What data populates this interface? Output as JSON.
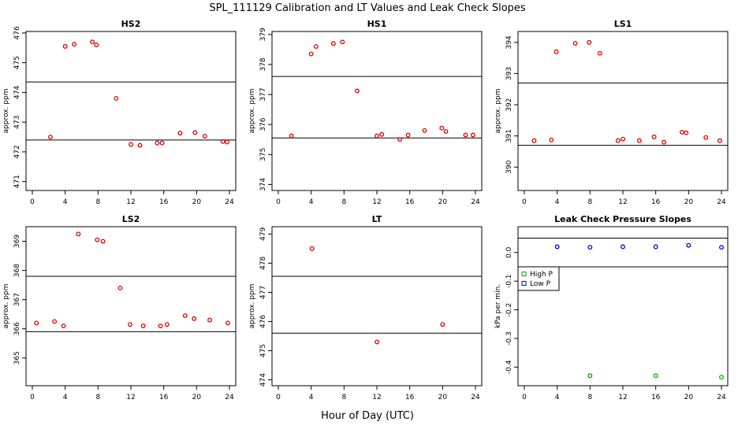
{
  "title": "SPL_111129  Calibration and LT Values and Leak Check Slopes",
  "xlabel": "Hour of Day (UTC)",
  "colors": {
    "red": "#dd0000",
    "green": "#00aa00",
    "blue": "#0000cc",
    "line": "#000000"
  },
  "chart_data": [
    {
      "type": "scatter",
      "title": "HS2",
      "ylabel": "approx. ppm",
      "xlim": [
        0,
        24
      ],
      "ylim": [
        470.7,
        476.05
      ],
      "xticks": [
        "0",
        "4",
        "8",
        "12",
        "16",
        "20",
        "24"
      ],
      "yticks": [
        "471",
        "472",
        "473",
        "474",
        "475",
        "476"
      ],
      "hlines": [
        472.4,
        474.35
      ],
      "series": [
        {
          "name": "HS2",
          "color": "#dd0000",
          "x": [
            2.2,
            4.0,
            5.1,
            7.3,
            7.8,
            10.2,
            12.0,
            13.1,
            15.2,
            15.8,
            18.0,
            19.8,
            21.0,
            23.2,
            23.7
          ],
          "y": [
            472.5,
            475.55,
            475.62,
            475.7,
            475.6,
            473.8,
            472.25,
            472.22,
            472.3,
            472.3,
            472.63,
            472.65,
            472.53,
            472.35,
            472.33
          ]
        }
      ]
    },
    {
      "type": "scatter",
      "title": "HS1",
      "ylabel": "approx. ppm",
      "xlim": [
        0,
        24
      ],
      "ylim": [
        373.8,
        379.1
      ],
      "xticks": [
        "0",
        "4",
        "8",
        "12",
        "16",
        "20",
        "24"
      ],
      "yticks": [
        "374",
        "375",
        "376",
        "377",
        "378",
        "379"
      ],
      "hlines": [
        375.55,
        377.6
      ],
      "series": [
        {
          "name": "HS1",
          "color": "#dd0000",
          "x": [
            1.6,
            4.0,
            4.6,
            6.7,
            7.8,
            9.6,
            12.0,
            12.6,
            14.8,
            15.8,
            17.8,
            19.9,
            20.4,
            22.8,
            23.7
          ],
          "y": [
            375.62,
            378.35,
            378.6,
            378.7,
            378.75,
            377.12,
            375.62,
            375.67,
            375.5,
            375.65,
            375.8,
            375.88,
            375.77,
            375.65,
            375.65
          ]
        }
      ]
    },
    {
      "type": "scatter",
      "title": "LS1",
      "ylabel": "approx. ppm",
      "xlim": [
        0,
        24
      ],
      "ylim": [
        389.25,
        394.35
      ],
      "xticks": [
        "0",
        "4",
        "8",
        "12",
        "16",
        "20",
        "24"
      ],
      "yticks": [
        "390",
        "391",
        "392",
        "393",
        "394"
      ],
      "hlines": [
        390.7,
        392.7
      ],
      "series": [
        {
          "name": "LS1",
          "color": "#dd0000",
          "x": [
            1.2,
            3.3,
            3.9,
            6.2,
            7.9,
            9.2,
            11.4,
            12.0,
            14.0,
            15.8,
            17.0,
            19.2,
            19.7,
            22.1,
            23.8
          ],
          "y": [
            390.85,
            390.87,
            393.7,
            393.97,
            394.0,
            393.65,
            390.85,
            390.9,
            390.85,
            390.97,
            390.8,
            391.12,
            391.1,
            390.95,
            390.85
          ]
        }
      ]
    },
    {
      "type": "scatter",
      "title": "LS2",
      "ylabel": "approx. ppm",
      "xlim": [
        0,
        24
      ],
      "ylim": [
        364.05,
        369.5
      ],
      "xticks": [
        "0",
        "4",
        "8",
        "12",
        "16",
        "20",
        "24"
      ],
      "yticks": [
        "365",
        "366",
        "367",
        "368",
        "369"
      ],
      "hlines": [
        365.9,
        367.8
      ],
      "series": [
        {
          "name": "LS2",
          "color": "#dd0000",
          "x": [
            0.5,
            2.7,
            3.8,
            5.6,
            7.9,
            8.6,
            10.7,
            11.9,
            13.5,
            15.6,
            16.4,
            18.6,
            19.7,
            21.6,
            23.8
          ],
          "y": [
            366.2,
            366.25,
            366.1,
            369.25,
            369.05,
            369.0,
            367.4,
            366.15,
            366.1,
            366.1,
            366.15,
            366.45,
            366.35,
            366.3,
            366.2
          ]
        }
      ]
    },
    {
      "type": "scatter",
      "title": "LT",
      "ylabel": "approx. ppm",
      "xlim": [
        0,
        24
      ],
      "ylim": [
        473.8,
        479.25
      ],
      "xticks": [
        "0",
        "4",
        "8",
        "12",
        "16",
        "20",
        "24"
      ],
      "yticks": [
        "474",
        "475",
        "476",
        "477",
        "478",
        "479"
      ],
      "hlines": [
        475.6,
        477.55
      ],
      "series": [
        {
          "name": "LT",
          "color": "#dd0000",
          "x": [
            4.1,
            12.0,
            20.0
          ],
          "y": [
            478.5,
            475.3,
            475.9
          ]
        }
      ]
    },
    {
      "type": "scatter",
      "title": "Leak Check Pressure Slopes",
      "ylabel": "kPa per min.",
      "xlim": [
        0,
        24
      ],
      "ylim": [
        -0.465,
        0.09
      ],
      "xticks": [
        "0",
        "4",
        "8",
        "12",
        "16",
        "20",
        "24"
      ],
      "yticks": [
        "-0.4",
        "-0.3",
        "-0.2",
        "-0.1",
        "0.0"
      ],
      "hlines": [
        0.05,
        -0.05
      ],
      "legend": {
        "position": "left",
        "labels": [
          "High P",
          "Low P"
        ]
      },
      "series": [
        {
          "name": "High P",
          "color": "#00aa00",
          "x": [
            8.0,
            16.0,
            24.0
          ],
          "y": [
            -0.43,
            -0.43,
            -0.435
          ]
        },
        {
          "name": "Low P",
          "color": "#0000cc",
          "x": [
            4.0,
            8.0,
            12.0,
            16.0,
            20.0,
            24.0
          ],
          "y": [
            0.02,
            0.018,
            0.02,
            0.02,
            0.025,
            0.018
          ]
        }
      ]
    }
  ]
}
